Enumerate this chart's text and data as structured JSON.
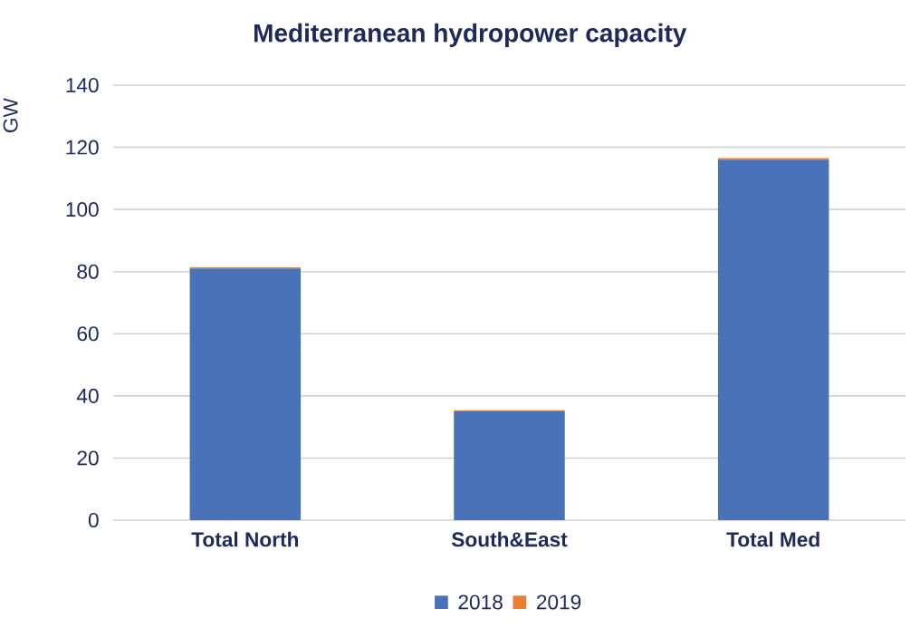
{
  "chart_data": {
    "type": "bar",
    "title": "Mediterranean hydropower capacity",
    "ylabel": "GW",
    "categories": [
      "Total North",
      "South&East",
      "Total Med"
    ],
    "series": [
      {
        "name": "2018",
        "color": "#4a72b8",
        "values": [
          81,
          35,
          116
        ]
      },
      {
        "name": "2019",
        "color": "#ed7d31",
        "values": [
          0.4,
          0.4,
          0.5
        ]
      }
    ],
    "stacked": true,
    "ylim": [
      0,
      140
    ],
    "yticks": [
      0,
      20,
      40,
      60,
      80,
      100,
      120,
      140
    ],
    "grid": "y",
    "legend": "bottom"
  }
}
